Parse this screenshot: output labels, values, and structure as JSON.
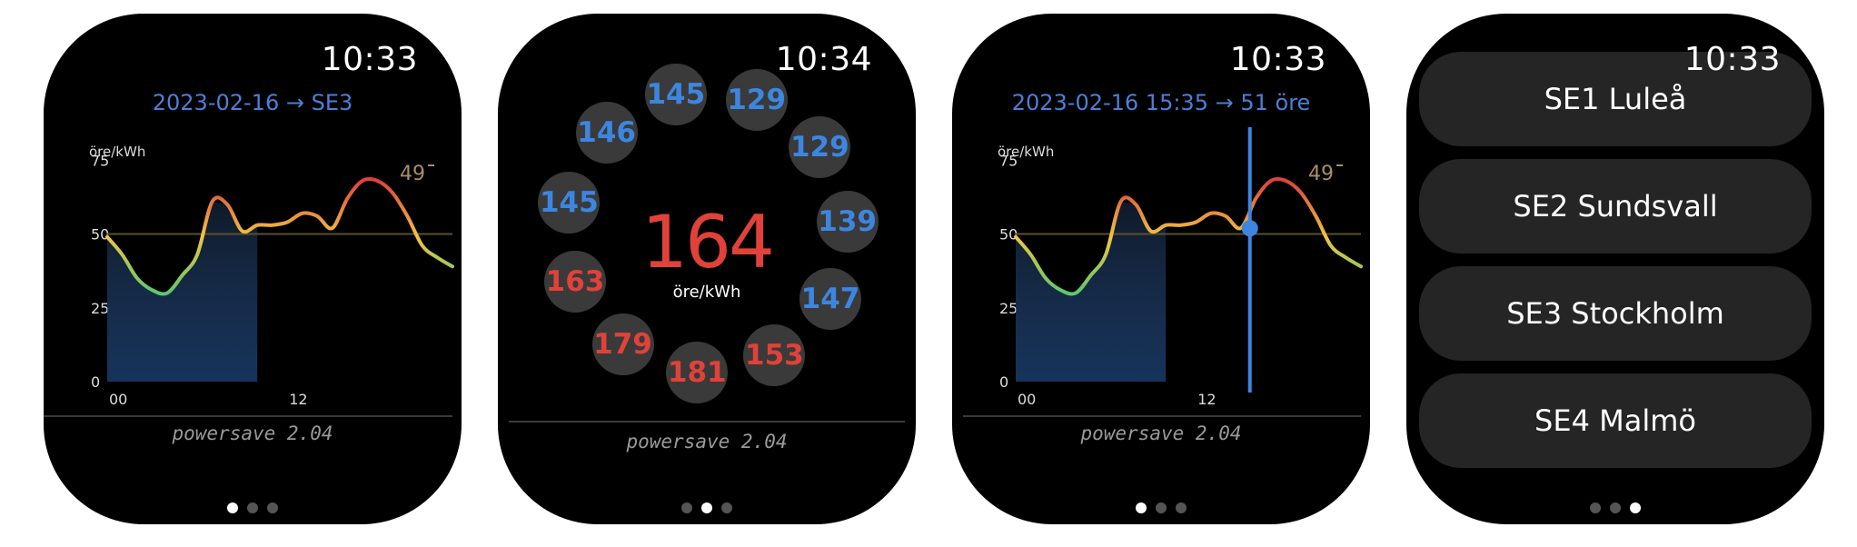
{
  "screens": [
    {
      "time": "10:33",
      "subtitle": "2023-02-16 → SE3",
      "footer": "powersave  2.04"
    },
    {
      "time": "10:34",
      "footer": "powersave  2.04",
      "current": {
        "value": "164",
        "unit": "öre/kWh"
      },
      "hours": [
        {
          "value": "129",
          "tone": "blue"
        },
        {
          "value": "129",
          "tone": "blue"
        },
        {
          "value": "139",
          "tone": "blue"
        },
        {
          "value": "147",
          "tone": "blue"
        },
        {
          "value": "153",
          "tone": "red"
        },
        {
          "value": "181",
          "tone": "red"
        },
        {
          "value": "179",
          "tone": "red"
        },
        {
          "value": "163",
          "tone": "red"
        },
        {
          "value": "145",
          "tone": "blue"
        },
        {
          "value": "146",
          "tone": "blue"
        },
        {
          "value": "145",
          "tone": "blue"
        }
      ]
    },
    {
      "time": "10:33",
      "subtitle": "2023-02-16 15:35 → 51 öre",
      "footer": "powersave  2.04"
    },
    {
      "time": "10:33",
      "regions": [
        "SE1 Luleå",
        "SE2 Sundsvall",
        "SE3 Stockholm",
        "SE4 Malmö"
      ]
    }
  ],
  "chart_data": {
    "type": "line",
    "ylabel": "öre/kWh",
    "yticks": [
      0,
      25,
      50,
      75
    ],
    "ylim": [
      0,
      80
    ],
    "xlim": [
      0,
      23
    ],
    "xticks": [
      {
        "x": 0,
        "label": "00"
      },
      {
        "x": 12,
        "label": "12"
      }
    ],
    "x": [
      0,
      1,
      2,
      3,
      4,
      5,
      6,
      7,
      8,
      9,
      10,
      11,
      12,
      13,
      14,
      15,
      16,
      17,
      18,
      19,
      20,
      21,
      22,
      23
    ],
    "values": [
      49,
      43,
      35,
      31,
      30,
      36,
      43,
      61,
      60,
      51,
      53,
      53,
      54,
      57,
      56,
      52,
      62,
      68,
      68,
      64,
      56,
      46,
      42,
      39
    ],
    "reference_line": 50,
    "shaded_until_x": 10,
    "max_label": "49",
    "cursor_x": 15.6,
    "cursor_value": 51,
    "colors": {
      "low": "#5cc96b",
      "mid": "#f2c541",
      "high": "#e0423a",
      "shade": "#173660",
      "cursor": "#3d86e0"
    }
  }
}
